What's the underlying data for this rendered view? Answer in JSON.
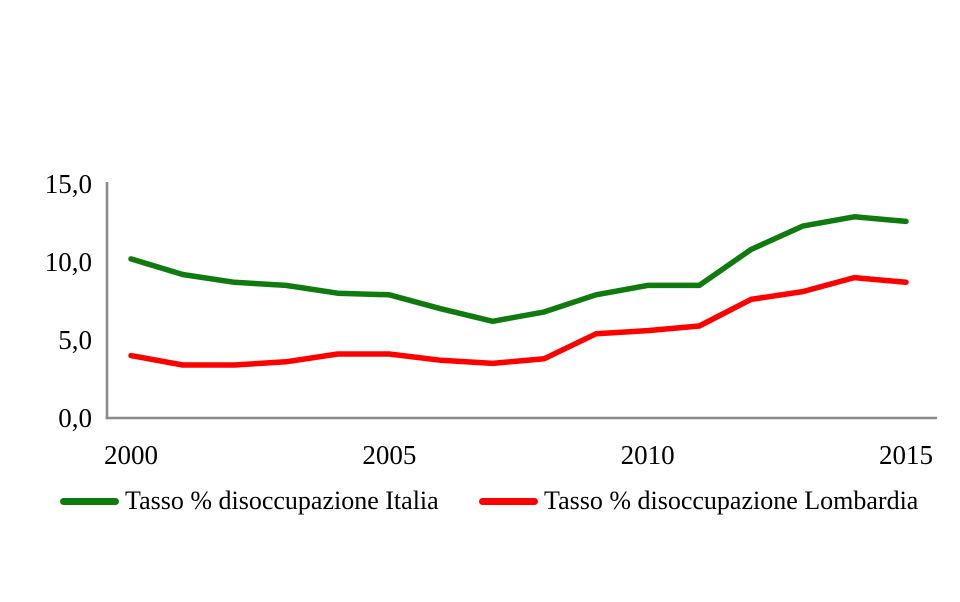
{
  "chart_data": {
    "type": "line",
    "title": "",
    "xlabel": "",
    "ylabel": "",
    "x": [
      2000,
      2001,
      2002,
      2003,
      2004,
      2005,
      2006,
      2007,
      2008,
      2009,
      2010,
      2011,
      2012,
      2013,
      2014,
      2015
    ],
    "series": [
      {
        "name": "Tasso % disoccupazione Italia",
        "color": "#0f7b0f",
        "values": [
          10.2,
          9.2,
          8.7,
          8.5,
          8.0,
          7.9,
          7.0,
          6.2,
          6.8,
          7.9,
          8.5,
          8.5,
          10.8,
          12.3,
          12.9,
          12.6
        ]
      },
      {
        "name": "Tasso % disoccupazione Lombardia",
        "color": "#fe0000",
        "values": [
          4.0,
          3.4,
          3.4,
          3.6,
          4.1,
          4.1,
          3.7,
          3.5,
          3.8,
          5.4,
          5.6,
          5.9,
          7.6,
          8.1,
          9.0,
          8.7
        ]
      }
    ],
    "ylim": [
      0,
      15
    ],
    "y_ticks": [
      {
        "value": 15,
        "label": "15,0"
      },
      {
        "value": 10,
        "label": "10,0"
      },
      {
        "value": 5,
        "label": "5,0"
      },
      {
        "value": 0,
        "label": "0,0"
      }
    ],
    "x_ticks": [
      {
        "value": 2000,
        "label": "2000"
      },
      {
        "value": 2005,
        "label": "2005"
      },
      {
        "value": 2010,
        "label": "2010"
      },
      {
        "value": 2015,
        "label": "2015"
      }
    ],
    "grid": false,
    "legend_position": "bottom",
    "axis_color": "#8c8c8c",
    "decimal_separator": ","
  }
}
